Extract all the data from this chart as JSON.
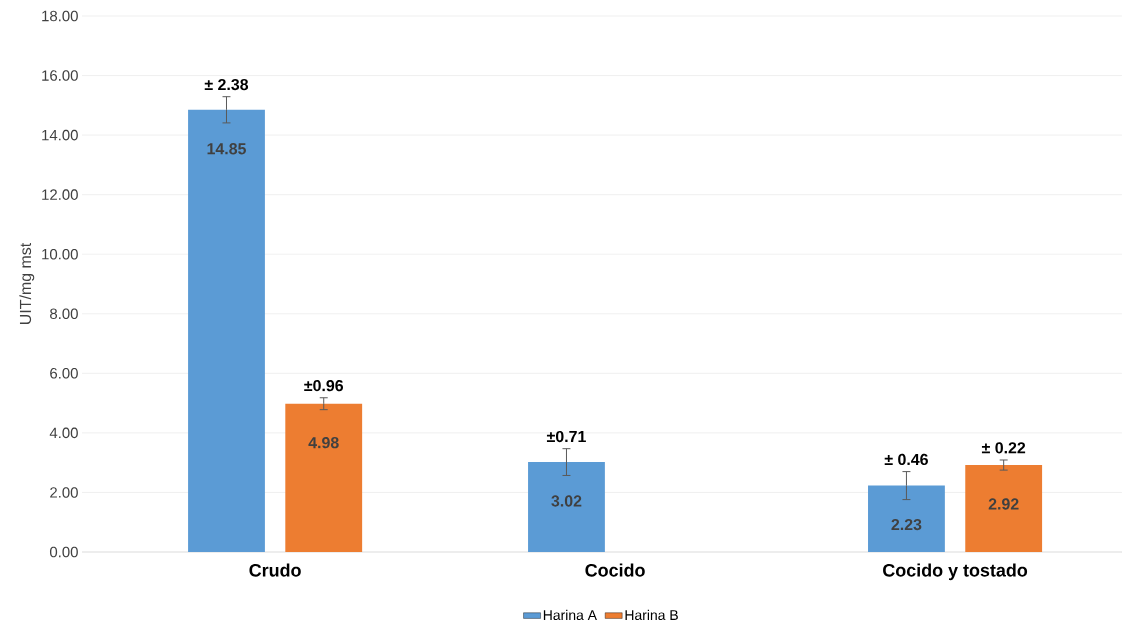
{
  "chart_data": {
    "type": "bar",
    "ylabel": "UIT/mg mst",
    "categories": [
      "Crudo",
      "Cocido",
      "Cocido y tostado"
    ],
    "series": [
      {
        "name": "Harina A",
        "color": "#5b9bd5",
        "values": [
          14.85,
          3.02,
          2.23
        ],
        "errors": [
          0.44,
          0.45,
          0.47
        ]
      },
      {
        "name": "Harina B",
        "color": "#ed7d31",
        "values": [
          4.98,
          null,
          2.92
        ],
        "errors": [
          0.2,
          null,
          0.17
        ]
      }
    ],
    "ylim": [
      0,
      18
    ],
    "yticks": [
      {
        "value": 0,
        "label": "0.00"
      },
      {
        "value": 2,
        "label": "2.00"
      },
      {
        "value": 4,
        "label": "4.00"
      },
      {
        "value": 6,
        "label": "6.00"
      },
      {
        "value": 8,
        "label": "8.00"
      },
      {
        "value": 10,
        "label": "10.00"
      },
      {
        "value": 12,
        "label": "12.00"
      },
      {
        "value": 14,
        "label": "14.00"
      },
      {
        "value": 16,
        "label": "16.00"
      },
      {
        "value": 18,
        "label": "18.00"
      }
    ],
    "grid": "y",
    "legend": "bottom",
    "data_labels": true,
    "annotations": [
      "± 2.38",
      "±0.96",
      "±0.71",
      "± 0.46",
      "± 0.22"
    ]
  }
}
